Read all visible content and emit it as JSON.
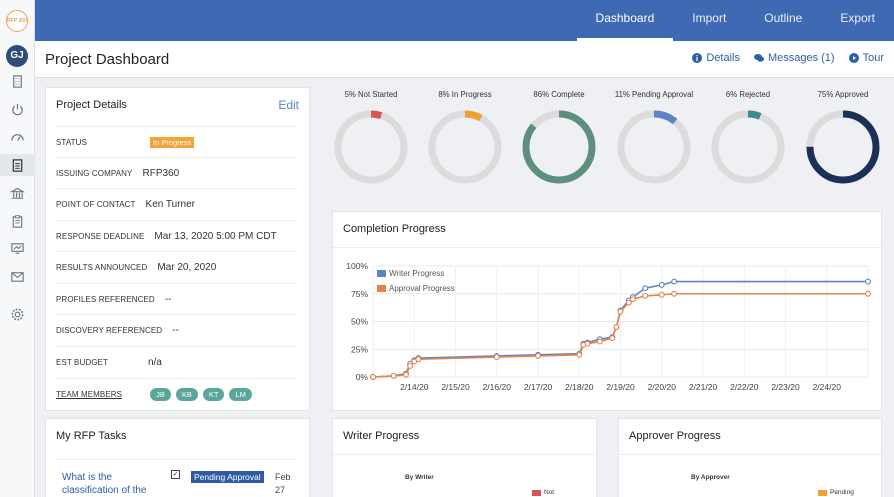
{
  "rail": {
    "logo_text": "RFP 360",
    "avatar_initials": "GJ",
    "icons": [
      "building-icon",
      "power-icon",
      "dashboard-gauge-icon",
      "document-icon",
      "bank-icon",
      "clipboard-icon",
      "monitor-chart-icon",
      "mail-icon",
      "settings-gear-icon"
    ]
  },
  "topnav": {
    "tabs": [
      "Dashboard",
      "Import",
      "Outline",
      "Export"
    ],
    "active": "Dashboard"
  },
  "header": {
    "title": "Project Dashboard",
    "links": {
      "details": "Details",
      "messages": "Messages (1)",
      "tour": "Tour"
    }
  },
  "project_details": {
    "title": "Project Details",
    "edit_label": "Edit",
    "rows": {
      "status": {
        "label": "STATUS",
        "value": "In Progress"
      },
      "issuing_company": {
        "label": "ISSUING COMPANY",
        "value": "RFP360"
      },
      "point_of_contact": {
        "label": "POINT OF CONTACT",
        "value": "Ken Turner"
      },
      "response_deadline": {
        "label": "RESPONSE DEADLINE",
        "value": "Mar 13, 2020 5:00 PM CDT"
      },
      "results_announced": {
        "label": "RESULTS ANNOUNCED",
        "value": "Mar 20, 2020"
      },
      "profiles_referenced": {
        "label": "PROFILES REFERENCED",
        "value": "--"
      },
      "discovery_referenced": {
        "label": "DISCOVERY REFERENCED",
        "value": "--"
      },
      "est_budget": {
        "label": "EST BUDGET",
        "value": "n/a"
      },
      "team_members": {
        "label": "TEAM MEMBERS",
        "members": [
          "JB",
          "KB",
          "KT",
          "LM"
        ]
      }
    }
  },
  "tasks": {
    "title": "My RFP Tasks",
    "items": [
      {
        "question": "What is the classification of the",
        "checked": "✓",
        "status": "Pending Approval",
        "date_month": "Feb",
        "date_day": "27"
      }
    ]
  },
  "donuts": [
    {
      "label": "5% Not Started",
      "percent": 5,
      "color": "#d9534f"
    },
    {
      "label": "8% In Progress",
      "percent": 8,
      "color": "#f0a030"
    },
    {
      "label": "86% Complete",
      "percent": 86,
      "color": "#5e8e7d"
    },
    {
      "label": "11% Pending Approval",
      "percent": 11,
      "color": "#5b84c9"
    },
    {
      "label": "6% Rejected",
      "percent": 6,
      "color": "#3f8a8a"
    },
    {
      "label": "75% Approved",
      "percent": 75,
      "color": "#1c2f55"
    }
  ],
  "completion": {
    "title": "Completion Progress",
    "chart_data": {
      "type": "line",
      "x": [
        "2/13/20",
        "2/14/20",
        "2/15/20",
        "2/16/20",
        "2/17/20",
        "2/18/20",
        "2/19/20",
        "2/20/20",
        "2/21/20",
        "2/22/20",
        "2/23/20",
        "2/24/20",
        "2/25/20"
      ],
      "x_tick_labels": [
        "2/14/20",
        "2/15/20",
        "2/16/20",
        "2/17/20",
        "2/18/20",
        "2/19/20",
        "2/20/20",
        "2/21/20",
        "2/22/20",
        "2/23/20",
        "2/24/20"
      ],
      "y_ticks": [
        "0%",
        "25%",
        "50%",
        "75%",
        "100%"
      ],
      "ylim": [
        0,
        100
      ],
      "legend_position": "top-left",
      "grid": true,
      "series": [
        {
          "name": "Writer Progress",
          "color": "#5b84c9",
          "points": [
            [
              "2/13/20",
              0
            ],
            [
              "2/13.5/20",
              1
            ],
            [
              "2/13.8/20",
              3
            ],
            [
              "2/13.9/20",
              12
            ],
            [
              "2/14/20",
              15
            ],
            [
              "2/14.1/20",
              17
            ],
            [
              "2/16/20",
              19
            ],
            [
              "2/17/20",
              20
            ],
            [
              "2/18/20",
              21
            ],
            [
              "2/18.1/20",
              30
            ],
            [
              "2/18.2/20",
              31
            ],
            [
              "2/18.5/20",
              34
            ],
            [
              "2/18.8/20",
              36
            ],
            [
              "2/18.9/20",
              45
            ],
            [
              "2/19/20",
              60
            ],
            [
              "2/19.2/20",
              69
            ],
            [
              "2/19.3/20",
              72
            ],
            [
              "2/19.6/20",
              80
            ],
            [
              "2/20/20",
              83
            ],
            [
              "2/20.3/20",
              86
            ],
            [
              "2/25/20",
              86
            ]
          ]
        },
        {
          "name": "Approval Progress",
          "color": "#e8834a",
          "points": [
            [
              "2/13/20",
              0
            ],
            [
              "2/13.5/20",
              1
            ],
            [
              "2/13.8/20",
              2
            ],
            [
              "2/13.9/20",
              10
            ],
            [
              "2/14/20",
              14
            ],
            [
              "2/14.1/20",
              16
            ],
            [
              "2/16/20",
              18
            ],
            [
              "2/17/20",
              19
            ],
            [
              "2/18/20",
              20
            ],
            [
              "2/18.1/20",
              29
            ],
            [
              "2/18.2/20",
              30
            ],
            [
              "2/18.5/20",
              32
            ],
            [
              "2/18.8/20",
              35
            ],
            [
              "2/18.9/20",
              45
            ],
            [
              "2/19/20",
              59
            ],
            [
              "2/19.2/20",
              67
            ],
            [
              "2/19.3/20",
              70
            ],
            [
              "2/19.6/20",
              73
            ],
            [
              "2/20/20",
              74
            ],
            [
              "2/20.3/20",
              75
            ],
            [
              "2/25/20",
              75
            ]
          ]
        }
      ]
    }
  },
  "writer_progress": {
    "title": "Writer Progress",
    "chart_title": "By Writer",
    "legend": "Not"
  },
  "approver_progress": {
    "title": "Approver Progress",
    "chart_title": "By Approver",
    "legend": "Pending"
  }
}
